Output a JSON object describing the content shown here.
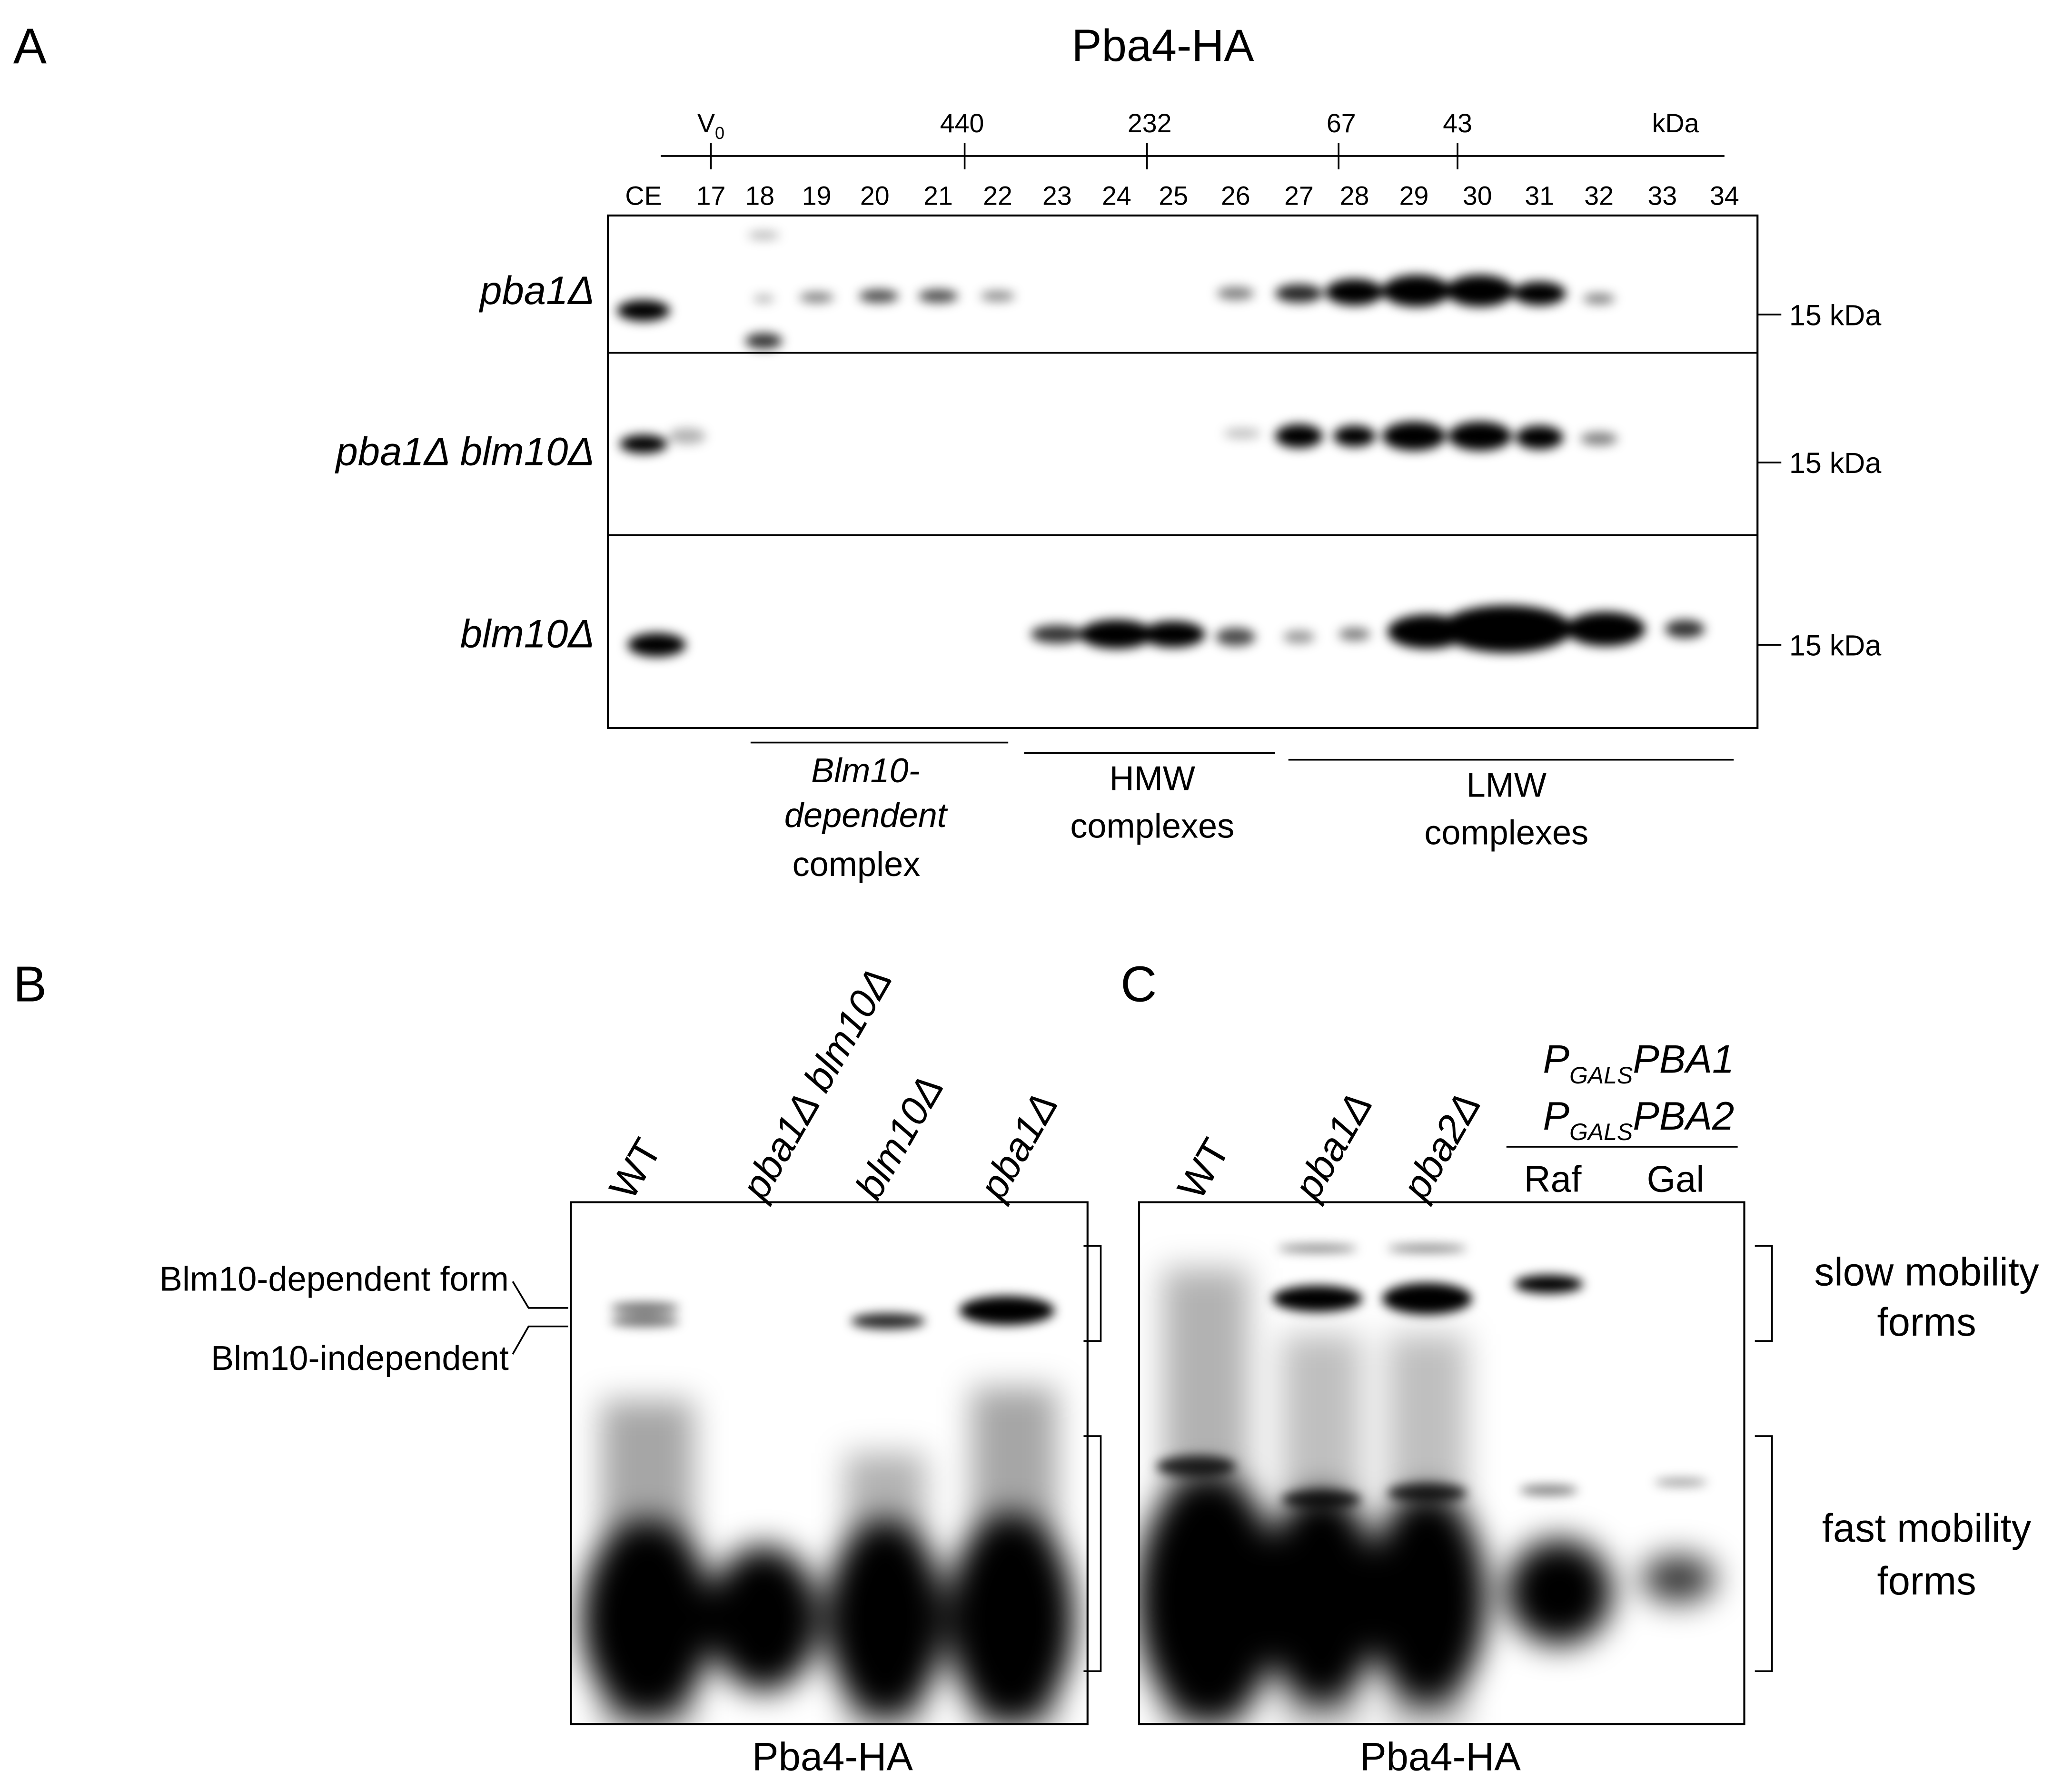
{
  "panel_a": {
    "letter": "A",
    "title": "Pba4-HA",
    "markers": [
      {
        "label": "V",
        "subscript": "0"
      },
      {
        "label": "440"
      },
      {
        "label": "232"
      },
      {
        "label": "67"
      },
      {
        "label": "43"
      }
    ],
    "marker_unit": "kDa",
    "lanes": [
      "CE",
      "17",
      "18",
      "19",
      "20",
      "21",
      "22",
      "23",
      "24",
      "25",
      "26",
      "27",
      "28",
      "29",
      "30",
      "31",
      "32",
      "33",
      "34"
    ],
    "rows": [
      {
        "label": "pba1Δ",
        "size": "15 kDa"
      },
      {
        "label": "pba1Δ blm10Δ",
        "size": "15 kDa"
      },
      {
        "label": "blm10Δ",
        "size": "15 kDa"
      }
    ],
    "groups": [
      {
        "lines": [
          "Blm10-",
          "dependent",
          "complex"
        ]
      },
      {
        "lines": [
          "HMW",
          "complexes"
        ]
      },
      {
        "lines": [
          "LMW",
          "complexes"
        ]
      }
    ]
  },
  "panel_b": {
    "letter": "B",
    "lanes": [
      "WT",
      "pba1Δ blm10Δ",
      "blm10Δ",
      "pba1Δ"
    ],
    "band_labels": [
      "Blm10-dependent form",
      "Blm10-independent"
    ],
    "caption": "Pba4-HA"
  },
  "panel_c": {
    "letter": "C",
    "lanes": [
      "WT",
      "pba1Δ",
      "pba2Δ"
    ],
    "constructs": [
      {
        "prefix": "P",
        "subscript": "GALS",
        "name": "PBA1"
      },
      {
        "prefix": "P",
        "subscript": "GALS",
        "name": "PBA2"
      }
    ],
    "conditions": [
      "Raf",
      "Gal"
    ],
    "forms": [
      {
        "lines": [
          "slow mobility",
          "forms"
        ]
      },
      {
        "lines": [
          "fast mobility",
          "forms"
        ]
      }
    ],
    "caption": "Pba4-HA"
  }
}
